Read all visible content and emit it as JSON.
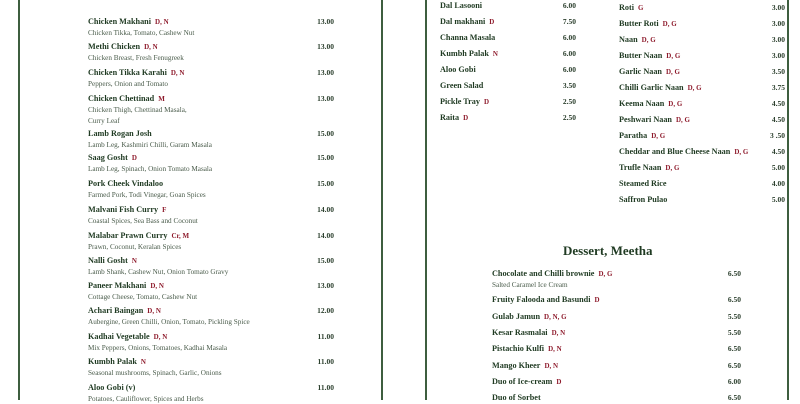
{
  "colors": {
    "border": "#3d5e3f",
    "name": "#1f3a22",
    "allergen": "#8e1b2c",
    "description": "#4a5c4b"
  },
  "mains": [
    {
      "name": "Chicken Makhani",
      "allergens": "D, N",
      "desc": "Chicken Tikka, Tomato, Cashew Nut",
      "price": "13.00"
    },
    {
      "name": "Methi Chicken",
      "allergens": "D, N",
      "desc": "Chicken Breast, Fresh Fenugreek",
      "price": "13.00"
    },
    {
      "name": "Chicken Tikka Karahi",
      "allergens": "D, N",
      "desc": "Peppers, Onion and Tomato",
      "price": "13.00"
    },
    {
      "name": "Chicken Chettinad",
      "allergens": "M",
      "desc": "Chicken Thigh, Chettinad Masala,",
      "desc2": "Curry Leaf",
      "price": "13.00"
    },
    {
      "name": "Lamb Rogan Josh",
      "allergens": "",
      "desc": "Lamb Leg, Kashmiri Chilli, Garam Masala",
      "price": "15.00"
    },
    {
      "name": "Saag Gosht",
      "allergens": "D",
      "desc": "Lamb Leg, Spinach, Onion Tomato Masala",
      "price": "15.00"
    },
    {
      "name": "Pork Cheek Vindaloo",
      "allergens": "",
      "desc": "Farmed Pork, Todi Vinegar, Goan Spices",
      "price": "15.00"
    },
    {
      "name": "Malvani Fish Curry",
      "allergens": "F",
      "desc": "Coastal Spices, Sea Bass and Coconut",
      "price": "14.00"
    },
    {
      "name": "Malabar Prawn Curry",
      "allergens": "Cr, M",
      "desc": "Prawn, Coconut, Keralan Spices",
      "price": "14.00"
    },
    {
      "name": "Nalli Gosht",
      "allergens": "N",
      "desc": "Lamb Shank, Cashew Nut, Onion Tomato Gravy",
      "price": "15.00"
    },
    {
      "name": "Paneer  Makhani",
      "allergens": "D, N",
      "desc": "Cottage Cheese, Tomato, Cashew Nut",
      "price": "13.00"
    },
    {
      "name": "Achari Baingan",
      "allergens": "D, N",
      "desc": "Aubergine, Green Chilli, Onion, Tomato, Pickling Spice",
      "price": "12.00"
    },
    {
      "name": "Kadhai Vegetable",
      "allergens": "D, N",
      "desc": "Mix Peppers, Onions, Tomatoes, Kadhai Masala",
      "price": "11.00"
    },
    {
      "name": "Kumbh Palak",
      "allergens": "N",
      "desc": "Seasonal mushrooms, Spinach, Garlic, Onions",
      "price": "11.00"
    },
    {
      "name": "Aloo Gobi (v)",
      "allergens": "",
      "desc": "Potatoes, Cauliflower, Spices and Herbs",
      "price": "11.00"
    }
  ],
  "sides": [
    {
      "name": "Dal Lasooni",
      "allergens": "",
      "price": "6.00"
    },
    {
      "name": "Dal makhani",
      "allergens": "D",
      "price": "7.50"
    },
    {
      "name": "Channa Masala",
      "allergens": "",
      "price": "6.00"
    },
    {
      "name": "Kumbh Palak",
      "allergens": "N",
      "price": "6.00"
    },
    {
      "name": "Aloo Gobi",
      "allergens": "",
      "price": "6.00"
    },
    {
      "name": "Green Salad",
      "allergens": "",
      "price": "3.50"
    },
    {
      "name": "Pickle Tray",
      "allergens": "D",
      "price": "2.50"
    },
    {
      "name": "Raita",
      "allergens": "D",
      "price": "2.50"
    }
  ],
  "breads": [
    {
      "name": "Roti",
      "allergens": "G",
      "price": "3.00"
    },
    {
      "name": "Butter Roti",
      "allergens": "D, G",
      "price": "3.00"
    },
    {
      "name": "Naan",
      "allergens": "D, G",
      "price": "3.00"
    },
    {
      "name": "Butter Naan",
      "allergens": "D, G",
      "price": "3.00"
    },
    {
      "name": "Garlic Naan",
      "allergens": "D, G",
      "price": "3.50"
    },
    {
      "name": "Chilli Garlic Naan",
      "allergens": "D, G",
      "price": "3.75"
    },
    {
      "name": "Keema Naan",
      "allergens": "D, G",
      "price": "4.50"
    },
    {
      "name": "Peshwari Naan",
      "allergens": "D, G",
      "price": "4.50"
    },
    {
      "name": "Paratha",
      "allergens": "D, G",
      "price": "3 .50"
    },
    {
      "name": "Cheddar and Blue Cheese Naan",
      "allergens": "D, G",
      "price": "4.50"
    },
    {
      "name": "Trufle Naan",
      "allergens": "D, G",
      "price": "5.00"
    },
    {
      "name": "Steamed Rice",
      "allergens": "",
      "price": "4.00"
    },
    {
      "name": "Saffron Pulao",
      "allergens": "",
      "price": "5.00"
    }
  ],
  "dessert": {
    "title": "Dessert, Meetha",
    "items": [
      {
        "name": "Chocolate and Chilli brownie",
        "allergens": "D, G",
        "desc": "Salted Caramel Ice Cream",
        "price": "6.50"
      },
      {
        "name": "Fruity Falooda and Basundi",
        "allergens": "D",
        "price": "6.50"
      },
      {
        "name": "Gulab Jamun",
        "allergens": "D, N, G",
        "price": "5.50"
      },
      {
        "name": "Kesar Rasmalai",
        "allergens": "D, N",
        "price": "5.50"
      },
      {
        "name": "Pistachio Kulfi",
        "allergens": "D, N",
        "price": "6.50"
      },
      {
        "name": "Mango Kheer",
        "allergens": "D, N",
        "price": "6.50"
      },
      {
        "name": "Duo of Ice-cream",
        "allergens": "D",
        "price": "6.00"
      },
      {
        "name": "Duo of Sorbet",
        "allergens": "",
        "price": "6.50"
      }
    ]
  }
}
